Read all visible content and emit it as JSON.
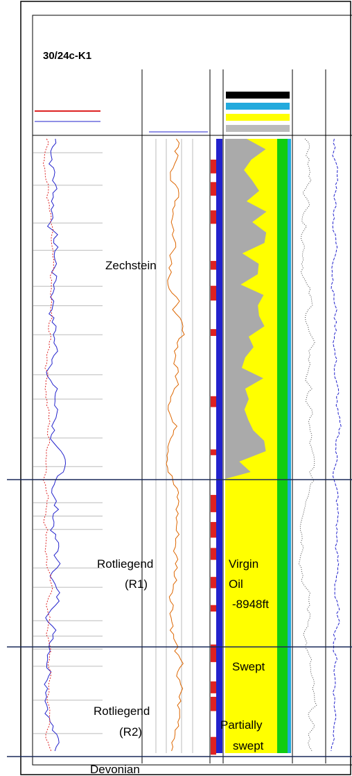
{
  "title": "30/24c-K1",
  "zones": [
    {
      "lines": [
        "Zechstein"
      ]
    },
    {
      "lines": [
        "Rotliegend",
        "(R1)"
      ]
    },
    {
      "lines": [
        "Rotliegend",
        "(R2)"
      ]
    },
    {
      "lines": [
        "Devonian"
      ]
    }
  ],
  "annotations": [
    {
      "lines": [
        "Virgin",
        "Oil",
        "-8948ft"
      ]
    },
    {
      "lines": [
        "Swept"
      ]
    },
    {
      "lines": [
        "Partially",
        "swept"
      ]
    }
  ]
}
